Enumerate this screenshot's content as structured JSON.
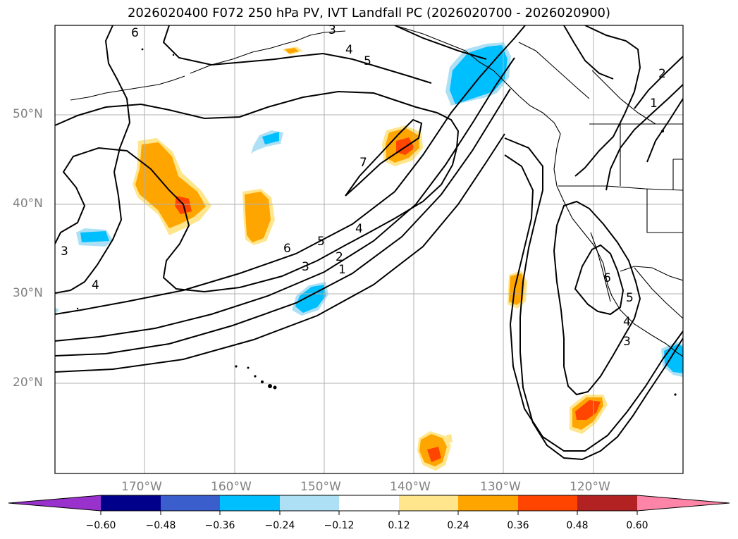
{
  "title": "2026020400 F072 250 hPa PV, IVT Landfall PC (2026020700 - 2026020900)",
  "latitude_labels": [
    "50°N",
    "40°N",
    "30°N",
    "20°N"
  ],
  "longitude_labels": [
    "170°W",
    "160°W",
    "150°W",
    "140°W",
    "130°W",
    "120°W"
  ],
  "contour_labels": [
    "6",
    "3",
    "4",
    "5",
    "7",
    "6",
    "5",
    "4",
    "2",
    "3",
    "1",
    "3",
    "4",
    "2",
    "1",
    "6",
    "5",
    "4",
    "3"
  ],
  "colorbar": {
    "ticks": [
      "−0.60",
      "−0.48",
      "−0.36",
      "−0.24",
      "−0.12",
      "0.12",
      "0.24",
      "0.36",
      "0.48",
      "0.60"
    ],
    "colors": [
      "#9932CC",
      "#00008B",
      "#3A5FCD",
      "#00BFFF",
      "#ADE0F5",
      "#FFFFFF",
      "#FFE68C",
      "#FFA500",
      "#FF4500",
      "#B22222",
      "#FF85A8"
    ]
  }
}
